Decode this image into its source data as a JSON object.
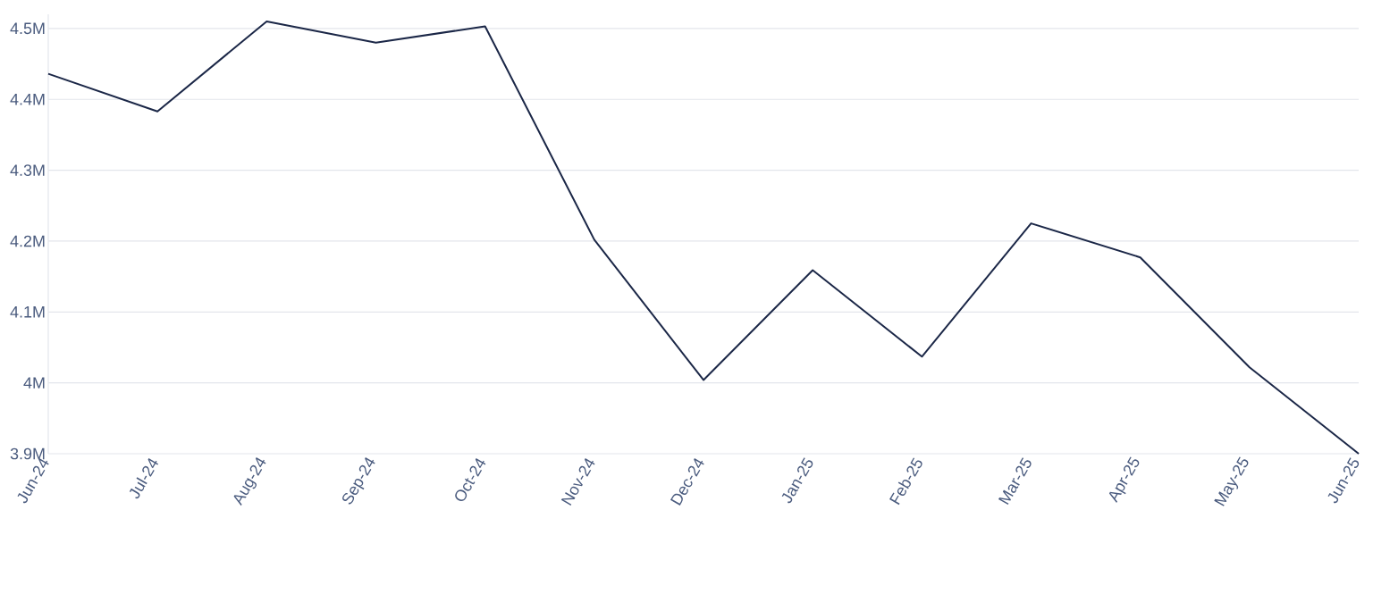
{
  "chart_data": {
    "type": "line",
    "categories": [
      "Jun-24",
      "Jul-24",
      "Aug-24",
      "Sep-24",
      "Oct-24",
      "Nov-24",
      "Dec-24",
      "Jan-25",
      "Feb-25",
      "Mar-25",
      "Apr-25",
      "May-25",
      "Jun-25"
    ],
    "series": [
      {
        "color": "#1b2747",
        "values": [
          4.436,
          4.383,
          4.51,
          4.48,
          4.503,
          4.202,
          4.004,
          4.159,
          4.037,
          4.225,
          4.177,
          4.022,
          3.9
        ]
      }
    ],
    "ylim": [
      3.9,
      4.52
    ],
    "yticks": [
      {
        "value": 3.9,
        "label": "3.9M"
      },
      {
        "value": 4.0,
        "label": "4M"
      },
      {
        "value": 4.1,
        "label": "4.1M"
      },
      {
        "value": 4.2,
        "label": "4.2M"
      },
      {
        "value": 4.3,
        "label": "4.3M"
      },
      {
        "value": 4.4,
        "label": "4.4M"
      },
      {
        "value": 4.5,
        "label": "4.5M"
      }
    ],
    "grid": "y",
    "marker": "none",
    "line_style": "solid"
  }
}
